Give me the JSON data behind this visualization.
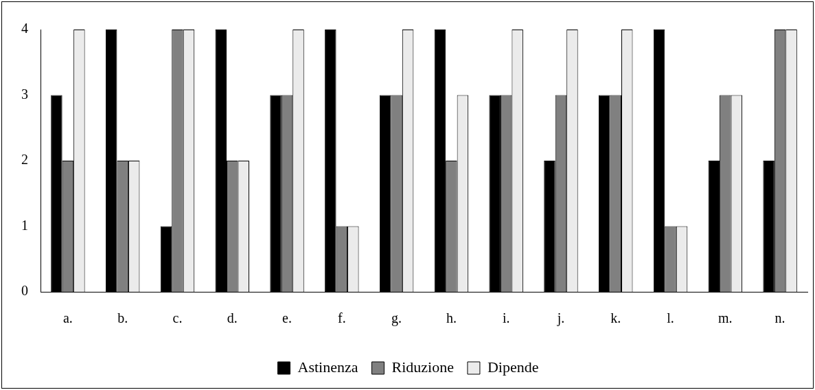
{
  "chart_data": {
    "type": "bar",
    "categories": [
      "a.",
      "b.",
      "c.",
      "d.",
      "e.",
      "f.",
      "g.",
      "h.",
      "i.",
      "j.",
      "k.",
      "l.",
      "m.",
      "n."
    ],
    "series": [
      {
        "name": "Astinenza",
        "color": "#000000",
        "values": [
          3,
          4,
          1,
          4,
          3,
          4,
          3,
          4,
          3,
          2,
          3,
          4,
          2,
          2
        ]
      },
      {
        "name": "Riduzione",
        "color": "#808080",
        "values": [
          2,
          2,
          4,
          2,
          3,
          1,
          3,
          2,
          3,
          3,
          3,
          1,
          3,
          4
        ]
      },
      {
        "name": "Dipende",
        "color": "#ebebeb",
        "values": [
          4,
          2,
          4,
          2,
          4,
          1,
          4,
          3,
          4,
          4,
          4,
          1,
          3,
          4
        ]
      }
    ],
    "ylim": [
      0,
      4
    ],
    "yticks": [
      0,
      1,
      2,
      3,
      4
    ],
    "grid": false,
    "legend": "bottom"
  }
}
